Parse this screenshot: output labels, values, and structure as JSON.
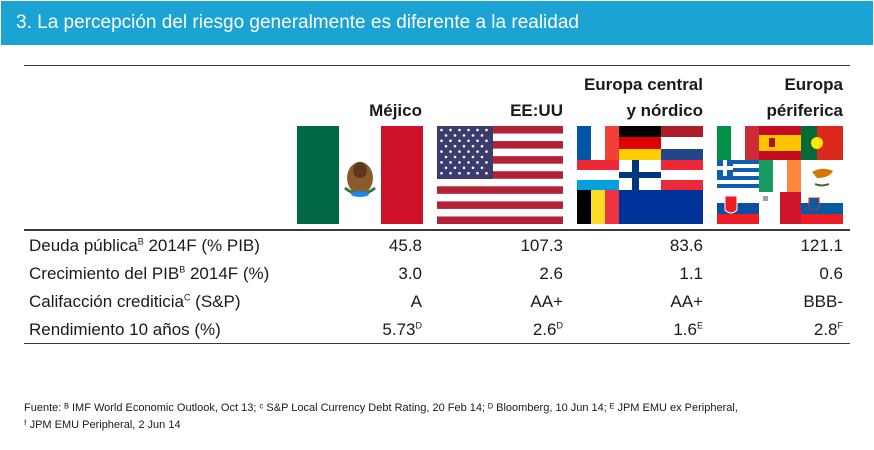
{
  "title": "3. La percepción del riesgo generalmente es diferente a la realidad",
  "columns": [
    {
      "line1": "Méjico",
      "line2": ""
    },
    {
      "line1": "EE:UU",
      "line2": ""
    },
    {
      "line1": "Europa central",
      "line2": "y nórdico"
    },
    {
      "line1": "Europa",
      "line2": "périferica"
    }
  ],
  "flags": [
    {
      "name": "mexico",
      "colors": [
        "#006847",
        "#ffffff",
        "#ce1126"
      ]
    },
    {
      "name": "usa",
      "colors": [
        "#b22234",
        "#ffffff",
        "#3c3b6e"
      ]
    },
    {
      "name": "central-nordic",
      "countries": [
        "France",
        "Germany",
        "Netherlands",
        "Luxembourg",
        "Finland",
        "Austria",
        "Belgium",
        "EU"
      ]
    },
    {
      "name": "periphery",
      "countries": [
        "Italy",
        "Spain",
        "Portugal",
        "Greece",
        "Ireland",
        "Cyprus",
        "Slovakia",
        "Malta",
        "Slovenia"
      ]
    }
  ],
  "rows": [
    {
      "label": "Deuda pública",
      "label_sup": "B",
      "label_tail": " 2014F (% PIB)",
      "values": [
        {
          "v": "45.8",
          "sup": ""
        },
        {
          "v": "107.3",
          "sup": ""
        },
        {
          "v": "83.6",
          "sup": ""
        },
        {
          "v": "121.1",
          "sup": ""
        }
      ]
    },
    {
      "label": "Crecimiento del PIB",
      "label_sup": "B",
      "label_tail": " 2014F (%)",
      "values": [
        {
          "v": "3.0",
          "sup": ""
        },
        {
          "v": "2.6",
          "sup": ""
        },
        {
          "v": "1.1",
          "sup": ""
        },
        {
          "v": "0.6",
          "sup": ""
        }
      ]
    },
    {
      "label": "Califacción crediticia",
      "label_sup": "C",
      "label_tail": " (S&P)",
      "values": [
        {
          "v": "A",
          "sup": ""
        },
        {
          "v": "AA+",
          "sup": ""
        },
        {
          "v": "AA+",
          "sup": ""
        },
        {
          "v": "BBB-",
          "sup": ""
        }
      ]
    },
    {
      "label": "Rendimiento 10 años (%)",
      "label_sup": "",
      "label_tail": "",
      "values": [
        {
          "v": "5.73",
          "sup": "D"
        },
        {
          "v": "2.6",
          "sup": "D"
        },
        {
          "v": "1.6",
          "sup": "E"
        },
        {
          "v": "2.8",
          "sup": "F"
        }
      ]
    }
  ],
  "footnote": {
    "line1": "Fuente: ᴮ IMF World Economic Outlook, Oct 13; ᶜ S&P Local Currency Debt Rating, 20 Feb 14; ᴰ Bloomberg, 10 Jun 14; ᴱ JPM EMU ex Peripheral,",
    "line2": "ᶠ JPM EMU Peripheral, 2 Jun 14"
  }
}
